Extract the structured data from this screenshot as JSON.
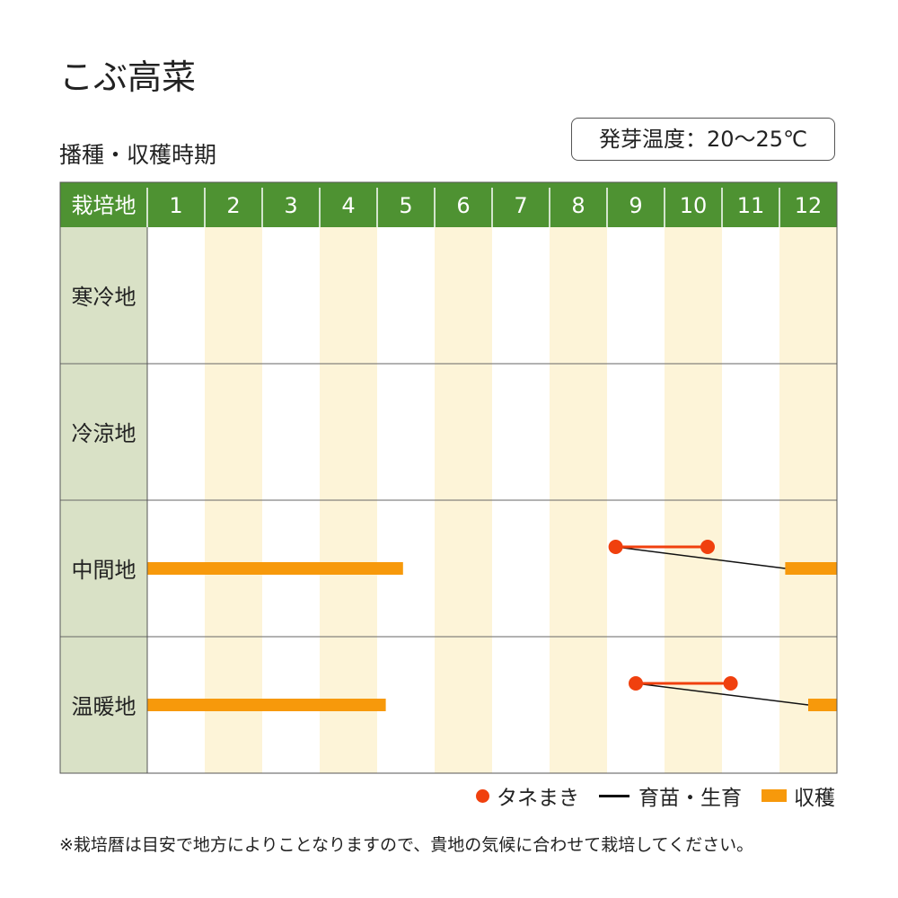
{
  "header": {
    "title": "こぶ高菜",
    "subtitle": "播種・収穫時期",
    "germination_temp": "発芽温度：20〜25℃"
  },
  "colors": {
    "header_green": "#4e9232",
    "region_cell": "#d9e1c6",
    "stripe": "#fdf4d8",
    "sowing": "#f0400e",
    "harvest": "#f7990b",
    "growth": "#111111"
  },
  "chart_data": {
    "type": "table",
    "row_header_label": "栽培地",
    "months": [
      "1",
      "2",
      "3",
      "4",
      "5",
      "6",
      "7",
      "8",
      "9",
      "10",
      "11",
      "12"
    ],
    "regions": [
      {
        "name": "寒冷地",
        "sowing": [],
        "growth": [],
        "harvest": []
      },
      {
        "name": "冷涼地",
        "sowing": [],
        "growth": [],
        "harvest": []
      },
      {
        "name": "中間地",
        "sowing": [
          {
            "start": 9.15,
            "end": 10.75
          }
        ],
        "growth": [
          {
            "start": 9.15,
            "end": 12.1
          }
        ],
        "harvest": [
          {
            "start": 1.0,
            "end": 5.45
          },
          {
            "start": 12.1,
            "end": 13.0
          }
        ]
      },
      {
        "name": "温暖地",
        "sowing": [
          {
            "start": 9.5,
            "end": 11.15
          }
        ],
        "growth": [
          {
            "start": 9.5,
            "end": 12.5
          }
        ],
        "harvest": [
          {
            "start": 1.0,
            "end": 5.15
          },
          {
            "start": 12.5,
            "end": 13.0
          }
        ]
      }
    ],
    "legend": [
      "タネまき",
      "育苗・生育",
      "収穫"
    ]
  },
  "note": "※栽培暦は目安で地方によりことなりますので、貴地の気候に合わせて栽培してください。"
}
